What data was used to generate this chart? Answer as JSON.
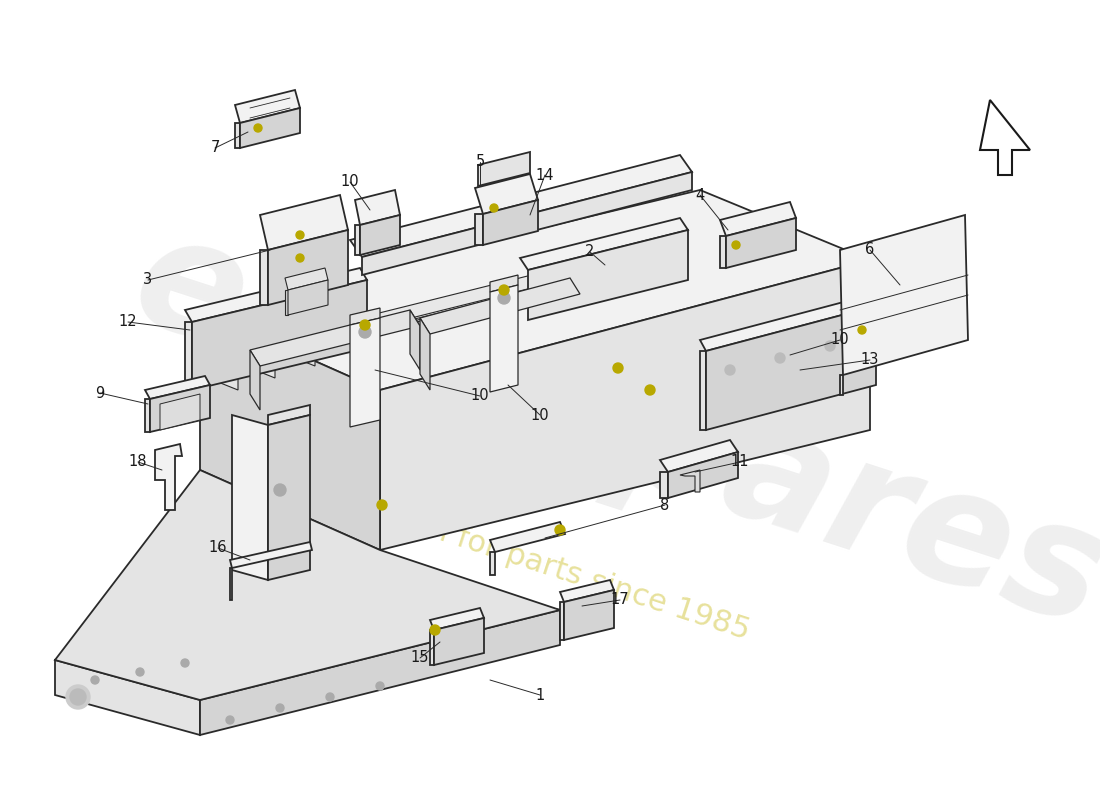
{
  "background_color": "#ffffff",
  "line_color": "#2a2a2a",
  "text_color": "#1a1a1a",
  "font_size": 10.5,
  "screw_color": "#b8a800",
  "watermark_color1": "#c8c8c8",
  "watermark_color2": "#d4c84a",
  "face_light": "#f2f2f2",
  "face_mid": "#e4e4e4",
  "face_dark": "#d4d4d4",
  "face_xdark": "#c8c8c8"
}
